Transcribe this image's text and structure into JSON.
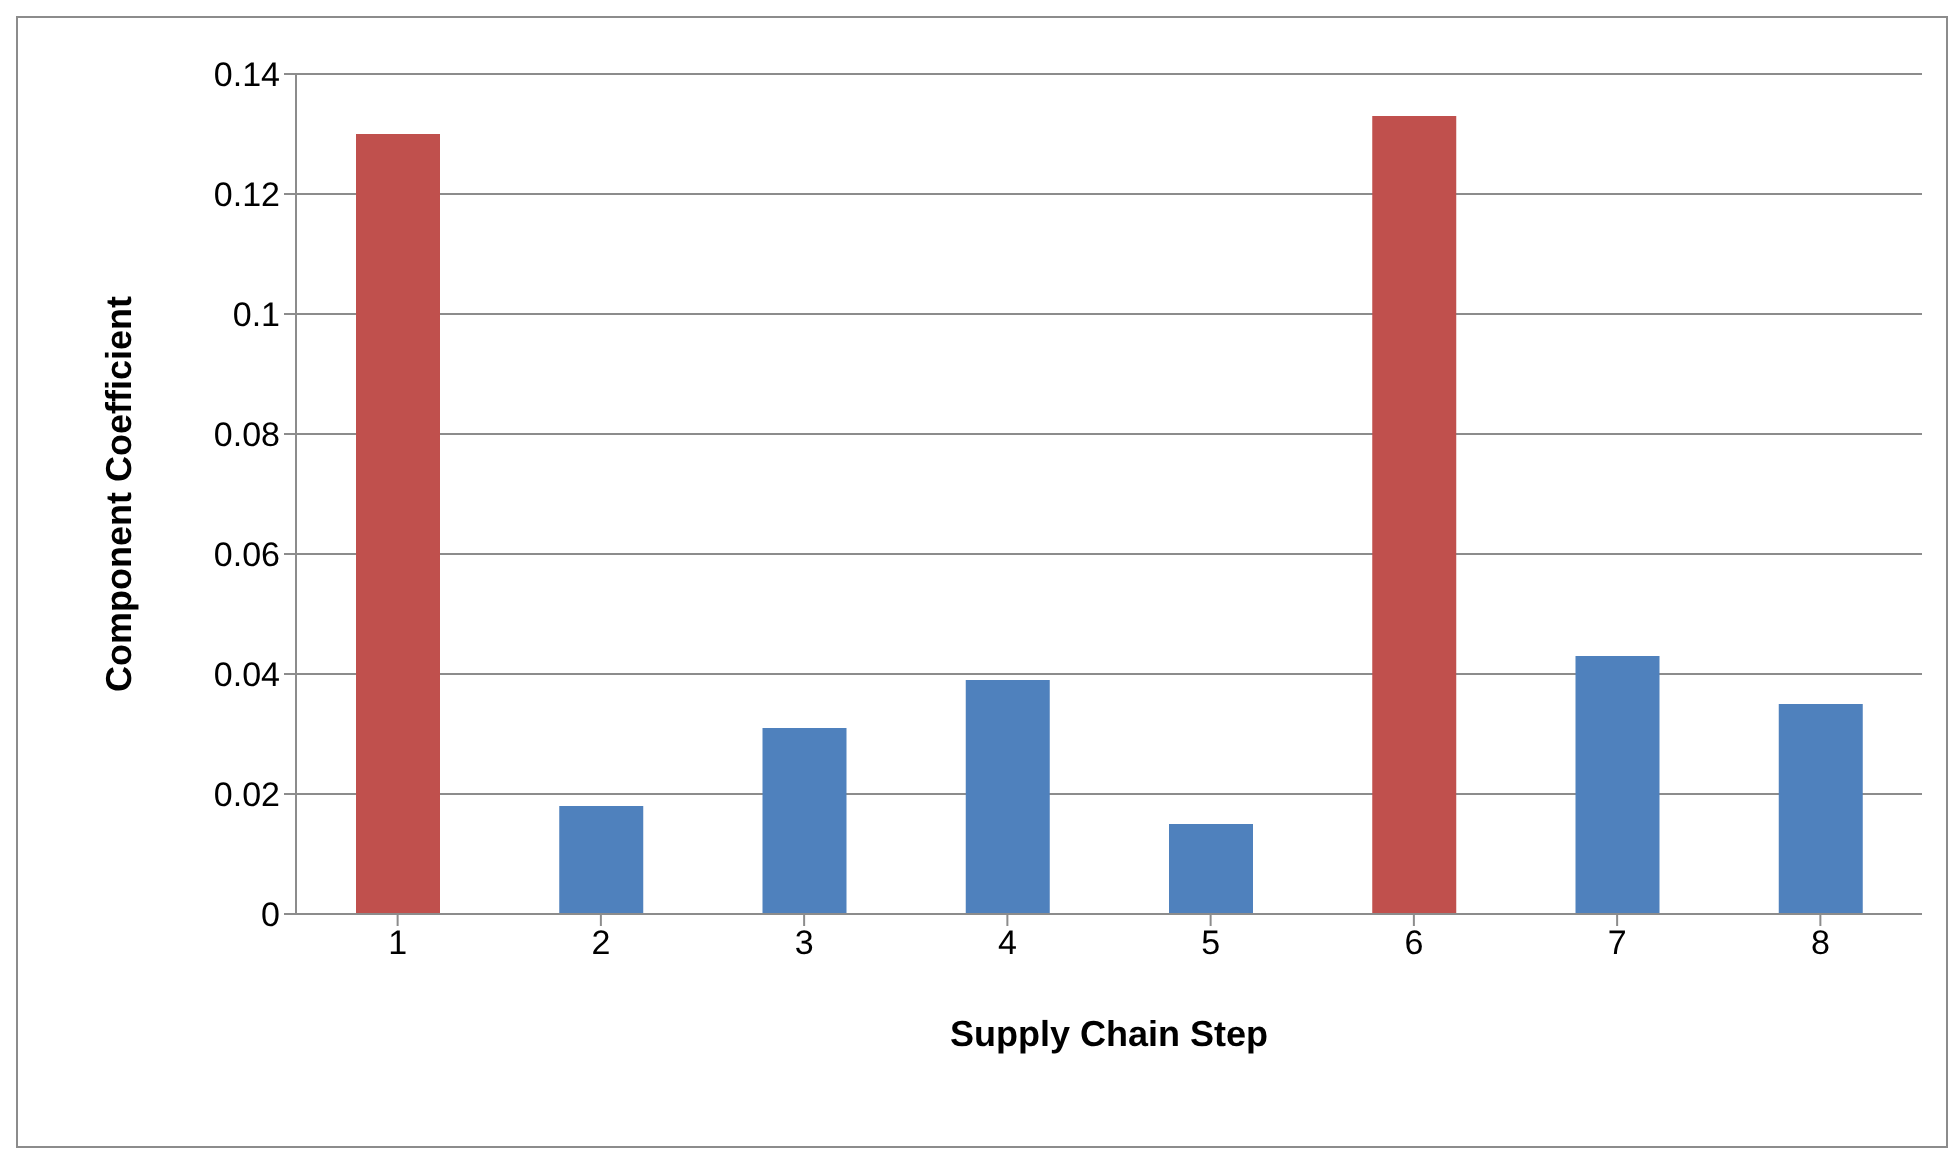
{
  "chart_data": {
    "type": "bar",
    "xlabel": "Supply Chain Step",
    "ylabel": "Component Coefficient",
    "categories": [
      "1",
      "2",
      "3",
      "4",
      "5",
      "6",
      "7",
      "8"
    ],
    "values": [
      0.13,
      0.018,
      0.031,
      0.039,
      0.015,
      0.133,
      0.043,
      0.035
    ],
    "colors": [
      "#c0504d",
      "#4f81bd",
      "#4f81bd",
      "#4f81bd",
      "#4f81bd",
      "#c0504d",
      "#4f81bd",
      "#4f81bd"
    ],
    "ylim": [
      0,
      0.14
    ],
    "yticks": [
      0,
      0.02,
      0.04,
      0.06,
      0.08,
      0.1,
      0.12,
      0.14
    ],
    "grid": "y",
    "legend": false
  }
}
